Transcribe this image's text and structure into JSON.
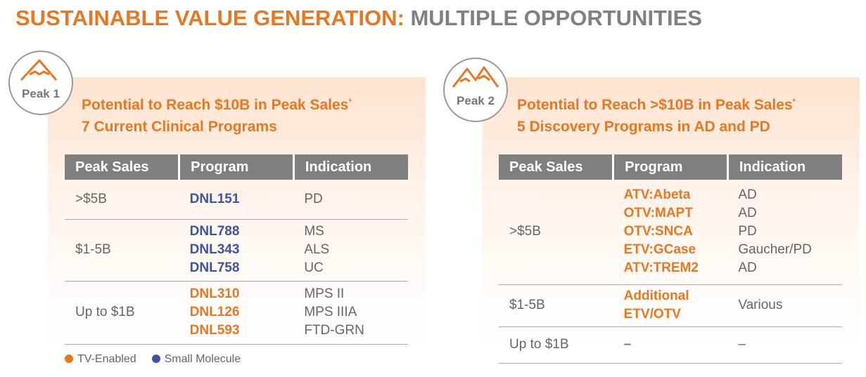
{
  "title": {
    "lead": "SUSTAINABLE VALUE GENERATION:",
    "rest": "MULTIPLE OPPORTUNITIES"
  },
  "panels": [
    {
      "badge": "Peak 1",
      "heading": [
        "Potential to Reach $10B in Peak Sales",
        "7 Current Clinical Programs"
      ],
      "footnote_mark": "*",
      "columns": [
        "Peak Sales",
        "Program",
        "Indication"
      ],
      "rows": [
        {
          "sales": ">$5B",
          "color": "#3b55a4",
          "programs": [
            "DNL151"
          ],
          "indications": [
            "PD"
          ]
        },
        {
          "sales": "$1-5B",
          "color": "#3b55a4",
          "programs": [
            "DNL788",
            "DNL343",
            "DNL758"
          ],
          "indications": [
            "MS",
            "ALS",
            "UC"
          ]
        },
        {
          "sales": "Up to $1B",
          "color": "#e87722",
          "programs": [
            "DNL310",
            "DNL126",
            "DNL593"
          ],
          "indications": [
            "MPS II",
            "MPS IIIA",
            "FTD-GRN"
          ]
        }
      ]
    },
    {
      "badge": "Peak 2",
      "heading": [
        "Potential to Reach >$10B in Peak Sales",
        "5 Discovery Programs in AD and PD"
      ],
      "footnote_mark": "*",
      "columns": [
        "Peak Sales",
        "Program",
        "Indication"
      ],
      "rows": [
        {
          "sales": ">$5B",
          "color": "#e87722",
          "programs": [
            "ATV:Abeta",
            "OTV:MAPT",
            "OTV:SNCA",
            "ETV:GCase",
            "ATV:TREM2"
          ],
          "indications": [
            "AD",
            "AD",
            "PD",
            "Gaucher/PD",
            "AD"
          ]
        },
        {
          "sales": "$1-5B",
          "color": "#e87722",
          "programs": [
            "Additional",
            "ETV/OTV"
          ],
          "indications": [
            "Various"
          ]
        },
        {
          "sales": "Up to $1B",
          "color": "#777777",
          "programs": [
            "–"
          ],
          "indications": [
            "–"
          ]
        }
      ]
    }
  ],
  "legend": [
    {
      "label": "TV-Enabled",
      "color": "#e87722"
    },
    {
      "label": "Small Molecule",
      "color": "#3b55a4"
    }
  ]
}
